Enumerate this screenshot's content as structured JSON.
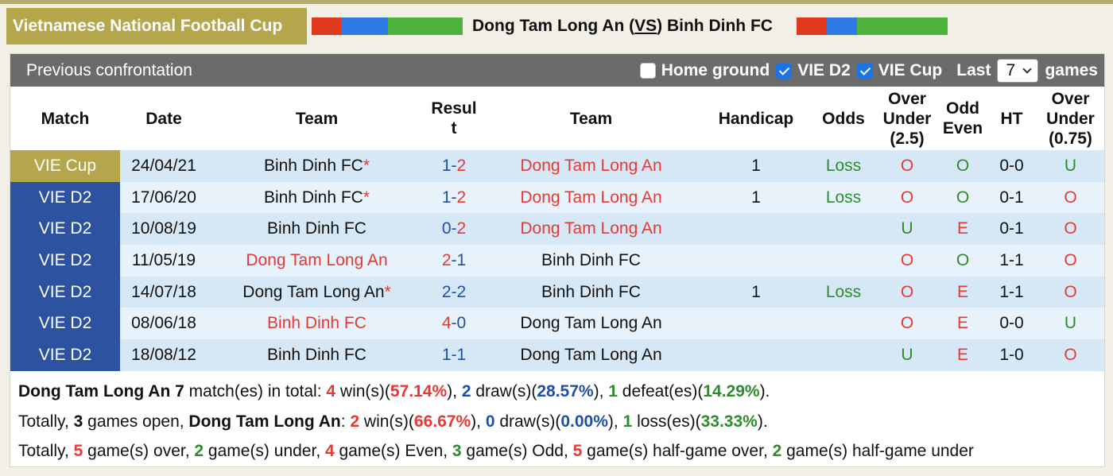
{
  "header": {
    "league_badge": "Vietnamese National Football Cup",
    "home_team": "Dong Tam Long An",
    "vs_open": " (",
    "vs": "VS",
    "vs_close": ") ",
    "away_team": "Binh Dinh FC",
    "bar_colors": [
      "#e03a1e",
      "#2f7ae5",
      "#4db33d"
    ]
  },
  "toolbar": {
    "title": "Previous confrontation",
    "home_ground_label": "Home ground",
    "home_ground_checked": false,
    "vie_d2_label": "VIE D2",
    "vie_d2_checked": true,
    "vie_cup_label": "VIE Cup",
    "vie_cup_checked": true,
    "last_label": "Last",
    "last_value": "7",
    "games_label": "games"
  },
  "columns": {
    "match": "Match",
    "date": "Date",
    "team1": "Team",
    "result_a": "Resul",
    "result_b": "t",
    "team2": "Team",
    "handicap": "Handicap",
    "odds": "Odds",
    "over_under_a": "Over",
    "over_under_b": "Under",
    "over_under_c": "(2.5)",
    "odd_even_a": "Odd",
    "odd_even_b": "Even",
    "ht": "HT",
    "ou075_a": "Over",
    "ou075_b": "Under",
    "ou075_c": "(0.75)"
  },
  "rows": [
    {
      "league": "VIE Cup",
      "date": "24/04/21",
      "team1": "Binh Dinh FC",
      "team1_star": "*",
      "score1": "1",
      "dash": "-",
      "score2": "2",
      "team2": "Dong Tam Long An",
      "handicap": "1",
      "odds": "Loss",
      "ou": "O",
      "oe": "O",
      "ht": "0-0",
      "ou075": "U"
    },
    {
      "league": "VIE D2",
      "date": "17/06/20",
      "team1": "Binh Dinh FC",
      "team1_star": "*",
      "score1": "1",
      "dash": "-",
      "score2": "2",
      "team2": "Dong Tam Long An",
      "handicap": "1",
      "odds": "Loss",
      "ou": "O",
      "oe": "O",
      "ht": "0-1",
      "ou075": "O"
    },
    {
      "league": "VIE D2",
      "date": "10/08/19",
      "team1": "Binh Dinh FC",
      "team1_star": "",
      "score1": "0",
      "dash": "-",
      "score2": "2",
      "team2": "Dong Tam Long An",
      "handicap": "",
      "odds": "",
      "ou": "U",
      "oe": "E",
      "ht": "0-1",
      "ou075": "O"
    },
    {
      "league": "VIE D2",
      "date": "11/05/19",
      "team1": "Dong Tam Long An",
      "team1_star": "",
      "score1": "2",
      "dash": "-",
      "score2": "1",
      "team2": "Binh Dinh FC",
      "handicap": "",
      "odds": "",
      "ou": "O",
      "oe": "O",
      "ht": "1-1",
      "ou075": "O"
    },
    {
      "league": "VIE D2",
      "date": "14/07/18",
      "team1": "Dong Tam Long An",
      "team1_star": "*",
      "score1": "2",
      "dash": "-",
      "score2": "2",
      "team2": "Binh Dinh FC",
      "handicap": "1",
      "odds": "Loss",
      "ou": "O",
      "oe": "E",
      "ht": "1-1",
      "ou075": "O"
    },
    {
      "league": "VIE D2",
      "date": "08/06/18",
      "team1": "Binh Dinh FC",
      "team1_star": "",
      "score1": "4",
      "dash": "-",
      "score2": "0",
      "team2": "Dong Tam Long An",
      "handicap": "",
      "odds": "",
      "ou": "O",
      "oe": "E",
      "ht": "0-0",
      "ou075": "U"
    },
    {
      "league": "VIE D2",
      "date": "18/08/12",
      "team1": "Binh Dinh FC",
      "team1_star": "",
      "score1": "1",
      "dash": "-",
      "score2": "1",
      "team2": "Dong Tam Long An",
      "handicap": "",
      "odds": "",
      "ou": "U",
      "oe": "E",
      "ht": "1-0",
      "ou075": "O"
    }
  ],
  "summary": {
    "line1": {
      "team": "Dong Tam Long An",
      "count": "7",
      "t1": " match(es) in total: ",
      "wins": "4",
      "t2": " win(s)(",
      "win_pct": "57.14%",
      "t3": "), ",
      "draws": "2",
      "t4": " draw(s)(",
      "draw_pct": "28.57%",
      "t5": "), ",
      "defeats": "1",
      "t6": " defeat(es)(",
      "defeat_pct": "14.29%",
      "t7": ")."
    },
    "line2": {
      "t0": "Totally, ",
      "open": "3",
      "t1": " games open, ",
      "team": "Dong Tam Long An",
      "t2": ": ",
      "wins": "2",
      "t3": " win(s)(",
      "win_pct": "66.67%",
      "t4": "), ",
      "draws": "0",
      "t5": " draw(s)(",
      "draw_pct": "0.00%",
      "t6": "), ",
      "losses": "1",
      "t7": " loss(es)(",
      "loss_pct": "33.33%",
      "t8": ")."
    },
    "line3": {
      "t0": "Totally, ",
      "over": "5",
      "t1": " game(s) over, ",
      "under": "2",
      "t2": " game(s) under, ",
      "even": "4",
      "t3": " game(s) Even, ",
      "odd": "3",
      "t4": " game(s) Odd, ",
      "hg_over": "5",
      "t5": " game(s) half-game over, ",
      "hg_under": "2",
      "t6": " game(s) half-game under"
    }
  }
}
